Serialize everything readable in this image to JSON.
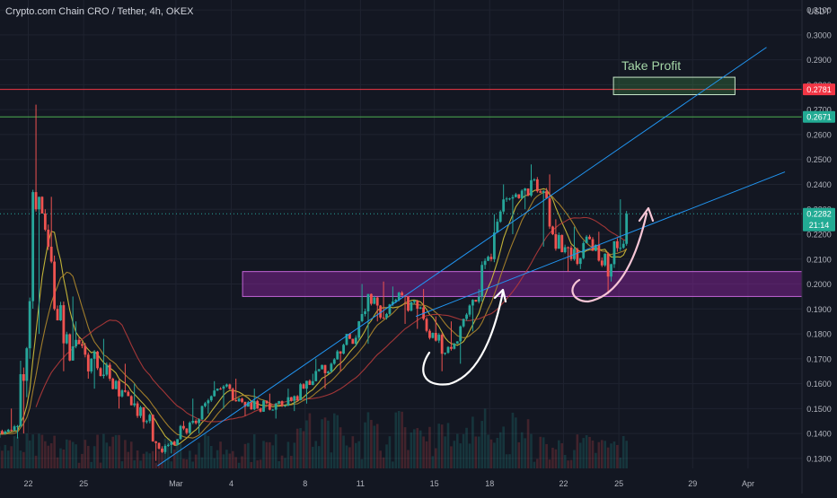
{
  "header": {
    "title": "Crypto.com Chain CRO / Tether, 4h, OKEX"
  },
  "price_axis": {
    "currency": "USDT",
    "ticks": [
      "0.3100",
      "0.3000",
      "0.2900",
      "0.2800",
      "0.2700",
      "0.2600",
      "0.2500",
      "0.2400",
      "0.2300",
      "0.2200",
      "0.2100",
      "0.2000",
      "0.1900",
      "0.1800",
      "0.1700",
      "0.1600",
      "0.1500",
      "0.1400",
      "0.1300"
    ],
    "badges": [
      {
        "label": "0.2781",
        "color": "#f23645"
      },
      {
        "label": "0.2671",
        "color": "#22ab94"
      },
      {
        "label": "0.2282",
        "color": "#22ab94"
      }
    ],
    "countdown": "21:14"
  },
  "time_axis": {
    "ticks": [
      "22",
      "25",
      "Mar",
      "4",
      "8",
      "11",
      "15",
      "18",
      "22",
      "25",
      "29",
      "Apr"
    ]
  },
  "annotations": {
    "take_profit": "Take Profit"
  },
  "colors": {
    "background": "#131722",
    "grid": "#1f2330",
    "up": "#26a69a",
    "down": "#ef5350",
    "resistance": "#f23645",
    "support": "#4caf50",
    "trend": "#2196f3",
    "zone": "#9c27b0",
    "take_profit": "#a5d6a7",
    "ma_fast": "#d4c23a",
    "ma_mid": "#b0882c",
    "ma_slow": "#b23a3a"
  },
  "chart_data": {
    "type": "candlestick",
    "symbol": "CRO/USDT",
    "timeframe": "4h",
    "exchange": "OKEX",
    "ylim": [
      0.126,
      0.314
    ],
    "x_range": [
      "Feb 18",
      "Apr 3"
    ],
    "horizontal_levels": [
      0.2781,
      0.2671
    ],
    "last_price": 0.2282,
    "zone": {
      "from": 0.195,
      "to": 0.205,
      "start": "Mar 5",
      "end": "Apr 3"
    },
    "take_profit": {
      "from": 0.276,
      "to": 0.283,
      "start": "Mar 25",
      "end": "Mar 31"
    },
    "trend_lines": [
      {
        "from": [
          "Feb 29",
          0.127
        ],
        "to": [
          "Apr 2",
          0.295
        ]
      },
      {
        "from": [
          "Mar 14",
          0.187
        ],
        "to": [
          "Apr 3",
          0.245
        ]
      }
    ],
    "candles_by_day": [
      {
        "date": "Feb 18",
        "open": 0.138,
        "high": 0.142,
        "low": 0.135,
        "close": 0.14
      },
      {
        "date": "Feb 19",
        "open": 0.14,
        "high": 0.144,
        "low": 0.136,
        "close": 0.138
      },
      {
        "date": "Feb 20",
        "open": 0.138,
        "high": 0.143,
        "low": 0.134,
        "close": 0.141
      },
      {
        "date": "Feb 21",
        "open": 0.141,
        "high": 0.15,
        "low": 0.138,
        "close": 0.143
      },
      {
        "date": "Feb 22",
        "open": 0.143,
        "high": 0.272,
        "low": 0.14,
        "close": 0.23
      },
      {
        "date": "Feb 23",
        "open": 0.23,
        "high": 0.235,
        "low": 0.18,
        "close": 0.19
      },
      {
        "date": "Feb 24",
        "open": 0.19,
        "high": 0.195,
        "low": 0.165,
        "close": 0.175
      },
      {
        "date": "Feb 25",
        "open": 0.175,
        "high": 0.185,
        "low": 0.162,
        "close": 0.17
      },
      {
        "date": "Feb 26",
        "open": 0.17,
        "high": 0.178,
        "low": 0.158,
        "close": 0.162
      },
      {
        "date": "Feb 27",
        "open": 0.162,
        "high": 0.168,
        "low": 0.15,
        "close": 0.155
      },
      {
        "date": "Feb 28",
        "open": 0.155,
        "high": 0.16,
        "low": 0.142,
        "close": 0.145
      },
      {
        "date": "Feb 29",
        "open": 0.145,
        "high": 0.148,
        "low": 0.129,
        "close": 0.135
      },
      {
        "date": "Mar 1",
        "open": 0.135,
        "high": 0.145,
        "low": 0.132,
        "close": 0.142
      },
      {
        "date": "Mar 2",
        "open": 0.142,
        "high": 0.154,
        "low": 0.14,
        "close": 0.151
      },
      {
        "date": "Mar 3",
        "open": 0.151,
        "high": 0.161,
        "low": 0.148,
        "close": 0.158
      },
      {
        "date": "Mar 4",
        "open": 0.158,
        "high": 0.162,
        "low": 0.15,
        "close": 0.154
      },
      {
        "date": "Mar 5",
        "open": 0.154,
        "high": 0.158,
        "low": 0.147,
        "close": 0.15
      },
      {
        "date": "Mar 6",
        "open": 0.15,
        "high": 0.156,
        "low": 0.146,
        "close": 0.152
      },
      {
        "date": "Mar 7",
        "open": 0.152,
        "high": 0.158,
        "low": 0.149,
        "close": 0.155
      },
      {
        "date": "Mar 8",
        "open": 0.155,
        "high": 0.164,
        "low": 0.152,
        "close": 0.161
      },
      {
        "date": "Mar 9",
        "open": 0.161,
        "high": 0.17,
        "low": 0.158,
        "close": 0.168
      },
      {
        "date": "Mar 10",
        "open": 0.168,
        "high": 0.18,
        "low": 0.165,
        "close": 0.178
      },
      {
        "date": "Mar 11",
        "open": 0.178,
        "high": 0.2,
        "low": 0.176,
        "close": 0.196
      },
      {
        "date": "Mar 12",
        "open": 0.196,
        "high": 0.201,
        "low": 0.185,
        "close": 0.188
      },
      {
        "date": "Mar 13",
        "open": 0.188,
        "high": 0.199,
        "low": 0.184,
        "close": 0.195
      },
      {
        "date": "Mar 14",
        "open": 0.195,
        "high": 0.198,
        "low": 0.182,
        "close": 0.186
      },
      {
        "date": "Mar 15",
        "open": 0.186,
        "high": 0.187,
        "low": 0.165,
        "close": 0.172
      },
      {
        "date": "Mar 16",
        "open": 0.172,
        "high": 0.185,
        "low": 0.168,
        "close": 0.183
      },
      {
        "date": "Mar 17",
        "open": 0.183,
        "high": 0.198,
        "low": 0.181,
        "close": 0.195
      },
      {
        "date": "Mar 18",
        "open": 0.195,
        "high": 0.228,
        "low": 0.193,
        "close": 0.225
      },
      {
        "date": "Mar 19",
        "open": 0.225,
        "high": 0.24,
        "low": 0.22,
        "close": 0.236
      },
      {
        "date": "Mar 20",
        "open": 0.236,
        "high": 0.248,
        "low": 0.23,
        "close": 0.242
      },
      {
        "date": "Mar 21",
        "open": 0.242,
        "high": 0.244,
        "low": 0.215,
        "close": 0.22
      },
      {
        "date": "Mar 22",
        "open": 0.22,
        "high": 0.226,
        "low": 0.205,
        "close": 0.21
      },
      {
        "date": "Mar 23",
        "open": 0.21,
        "high": 0.223,
        "low": 0.206,
        "close": 0.218
      },
      {
        "date": "Mar 24",
        "open": 0.218,
        "high": 0.221,
        "low": 0.196,
        "close": 0.203
      },
      {
        "date": "Mar 25",
        "open": 0.203,
        "high": 0.234,
        "low": 0.201,
        "close": 0.2282
      }
    ]
  }
}
